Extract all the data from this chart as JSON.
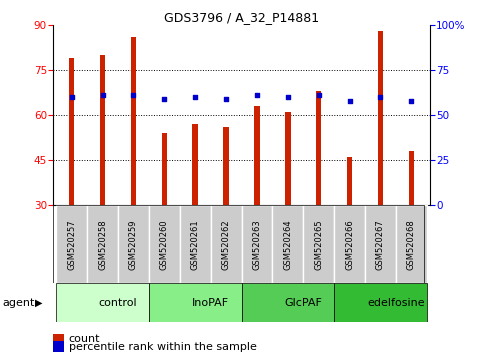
{
  "title": "GDS3796 / A_32_P14881",
  "samples": [
    "GSM520257",
    "GSM520258",
    "GSM520259",
    "GSM520260",
    "GSM520261",
    "GSM520262",
    "GSM520263",
    "GSM520264",
    "GSM520265",
    "GSM520266",
    "GSM520267",
    "GSM520268"
  ],
  "count_values": [
    79,
    80,
    86,
    54,
    57,
    56,
    63,
    61,
    68,
    46,
    88,
    48
  ],
  "percentile_values": [
    60,
    61,
    61,
    59,
    60,
    59,
    61,
    60,
    61,
    58,
    60,
    58
  ],
  "groups": [
    {
      "label": "control",
      "start": 0,
      "end": 3,
      "color": "#ccffcc"
    },
    {
      "label": "InoPAF",
      "start": 3,
      "end": 6,
      "color": "#88ee88"
    },
    {
      "label": "GlcPAF",
      "start": 6,
      "end": 9,
      "color": "#55cc55"
    },
    {
      "label": "edelfosine",
      "start": 9,
      "end": 12,
      "color": "#33bb33"
    }
  ],
  "ylim_left": [
    30,
    90
  ],
  "ylim_right": [
    0,
    100
  ],
  "yticks_left": [
    30,
    45,
    60,
    75,
    90
  ],
  "yticks_right": [
    0,
    25,
    50,
    75,
    100
  ],
  "bar_color": "#cc2200",
  "dot_color": "#0000cc",
  "grid_color": "#000000",
  "bar_width": 0.18,
  "sample_bg": "#cccccc",
  "agent_label": "agent",
  "legend_count_label": "count",
  "legend_pct_label": "percentile rank within the sample",
  "title_fontsize": 9,
  "tick_fontsize": 7.5,
  "sample_fontsize": 6,
  "group_fontsize": 8
}
